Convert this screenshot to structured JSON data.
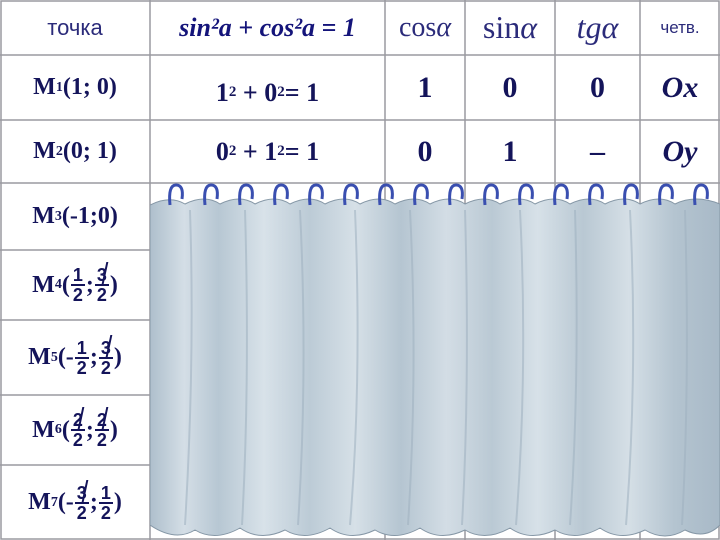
{
  "header": {
    "point_label": "точка",
    "identity": "sin²a + cos²a = 1",
    "cos_label": "cos",
    "sin_label": "sin",
    "tg_label": "tg",
    "alpha": "α",
    "quarter_label": "четв."
  },
  "rows": [
    {
      "point": "M",
      "index": "1",
      "coords": "(1; 0)",
      "formula_a": "1",
      "formula_b": "0",
      "formula_rhs": " = 1",
      "cos": "1",
      "sin": "0",
      "tg": "0",
      "quarter": "Ox"
    },
    {
      "point": "M",
      "index": "2",
      "coords": "(0; 1)",
      "formula_a": "0",
      "formula_b": "1",
      "formula_rhs": " = 1",
      "cos": "0",
      "sin": "1",
      "tg": "–",
      "quarter": "Oy"
    },
    {
      "point": "M",
      "index": "3",
      "coords": "(-1;0)"
    },
    {
      "point": "M",
      "index": "4",
      "open": "(",
      "f1_num": "1",
      "f1_den": "2",
      "sep": ";",
      "f2_num": "3",
      "f2_den": "2",
      "close": ")"
    },
    {
      "point": "M",
      "index": "5",
      "open": "(-",
      "f1_num": "1",
      "f1_den": "2",
      "sep": ";",
      "f2_num": "3",
      "f2_den": "2",
      "close": ")"
    },
    {
      "point": "M",
      "index": "6",
      "open": "(",
      "f1_num": "2",
      "f1_den": "2",
      "sep": ";",
      "f2_num": "2",
      "f2_den": "2",
      "close": ")"
    },
    {
      "point": "M",
      "index": "7",
      "open": "(-",
      "f1_num": "3",
      "f1_den": "2",
      "sep": ";",
      "f2_num": "1",
      "f2_den": "2",
      "close": ")"
    }
  ],
  "stray_digits": [
    "2",
    "2",
    "2",
    "2"
  ],
  "colors": {
    "text": "#14145a",
    "grid": "#9a9aa0",
    "curtain": "#c7d3dd",
    "curtain_dark": "#9fb1c0",
    "hooks": "#3a4fb0"
  }
}
